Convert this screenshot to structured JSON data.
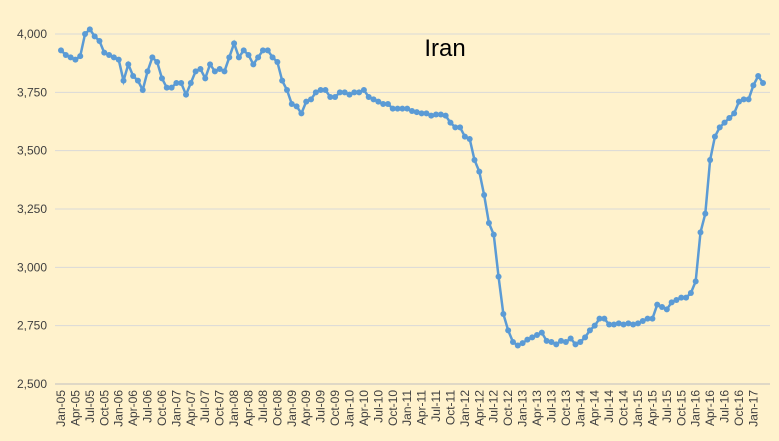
{
  "chart_data": {
    "type": "line",
    "title": "Iran",
    "categories": [
      "Jan-05",
      null,
      null,
      "Apr-05",
      null,
      null,
      "Jul-05",
      null,
      null,
      "Oct-05",
      null,
      null,
      "Jan-06",
      null,
      null,
      "Apr-06",
      null,
      null,
      "Jul-06",
      null,
      null,
      "Oct-06",
      null,
      null,
      "Jan-07",
      null,
      null,
      "Apr-07",
      null,
      null,
      "Jul-07",
      null,
      null,
      "Oct-07",
      null,
      null,
      "Jan-08",
      null,
      null,
      "Apr-08",
      null,
      null,
      "Jul-08",
      null,
      null,
      "Oct-08",
      null,
      null,
      "Jan-09",
      null,
      null,
      "Apr-09",
      null,
      null,
      "Jul-09",
      null,
      null,
      "Oct-09",
      null,
      null,
      "Jan-10",
      null,
      null,
      "Apr-10",
      null,
      null,
      "Jul-10",
      null,
      null,
      "Oct-10",
      null,
      null,
      "Jan-11",
      null,
      null,
      "Apr-11",
      null,
      null,
      "Jul-11",
      null,
      null,
      "Oct-11",
      null,
      null,
      "Jan-12",
      null,
      null,
      "Apr-12",
      null,
      null,
      "Jul-12",
      null,
      null,
      "Oct-12",
      null,
      null,
      "Jan-13",
      null,
      null,
      "Apr-13",
      null,
      null,
      "Jul-13",
      null,
      null,
      "Oct-13",
      null,
      null,
      "Jan-14",
      null,
      null,
      "Apr-14",
      null,
      null,
      "Jul-14",
      null,
      null,
      "Oct-14",
      null,
      null,
      "Jan-15",
      null,
      null,
      "Apr-15",
      null,
      null,
      "Jul-15",
      null,
      null,
      "Oct-15",
      null,
      null,
      "Jan-16",
      null,
      null,
      "Apr-16",
      null,
      null,
      "Jul-16",
      null,
      null,
      "Oct-16",
      null,
      null,
      "Jan-17",
      null,
      null
    ],
    "values": [
      3930,
      3910,
      3900,
      3890,
      3905,
      4000,
      4020,
      3990,
      3970,
      3920,
      3910,
      3900,
      3890,
      3800,
      3870,
      3820,
      3800,
      3760,
      3840,
      3900,
      3880,
      3810,
      3770,
      3770,
      3790,
      3790,
      3740,
      3790,
      3840,
      3850,
      3810,
      3870,
      3840,
      3850,
      3840,
      3900,
      3960,
      3900,
      3930,
      3910,
      3870,
      3900,
      3930,
      3930,
      3900,
      3880,
      3800,
      3760,
      3700,
      3690,
      3660,
      3710,
      3720,
      3750,
      3760,
      3760,
      3730,
      3730,
      3750,
      3750,
      3740,
      3750,
      3750,
      3760,
      3730,
      3720,
      3710,
      3700,
      3700,
      3680,
      3680,
      3680,
      3680,
      3670,
      3665,
      3660,
      3660,
      3650,
      3655,
      3655,
      3650,
      3620,
      3600,
      3600,
      3560,
      3550,
      3460,
      3410,
      3310,
      3190,
      3140,
      2960,
      2800,
      2730,
      2680,
      2665,
      2675,
      2690,
      2700,
      2710,
      2720,
      2685,
      2680,
      2670,
      2685,
      2680,
      2695,
      2670,
      2680,
      2700,
      2730,
      2750,
      2780,
      2780,
      2755,
      2755,
      2760,
      2755,
      2760,
      2755,
      2760,
      2770,
      2780,
      2780,
      2840,
      2830,
      2820,
      2850,
      2860,
      2870,
      2870,
      2890,
      2940,
      3150,
      3230,
      3460,
      3560,
      3600,
      3620,
      3640,
      3660,
      3710,
      3720,
      3720,
      3780,
      3820,
      3790
    ],
    "color": "#5b9bd5",
    "ylim": [
      2500,
      4000
    ],
    "yticks": [
      {
        "value": 2500,
        "label": "2,500"
      },
      {
        "value": 2750,
        "label": "2,750"
      },
      {
        "value": 3000,
        "label": "3,000"
      },
      {
        "value": 3250,
        "label": "3,250"
      },
      {
        "value": 3500,
        "label": "3,500"
      },
      {
        "value": 3750,
        "label": "3,750"
      },
      {
        "value": 4000,
        "label": "4,000"
      }
    ],
    "grid": true
  }
}
